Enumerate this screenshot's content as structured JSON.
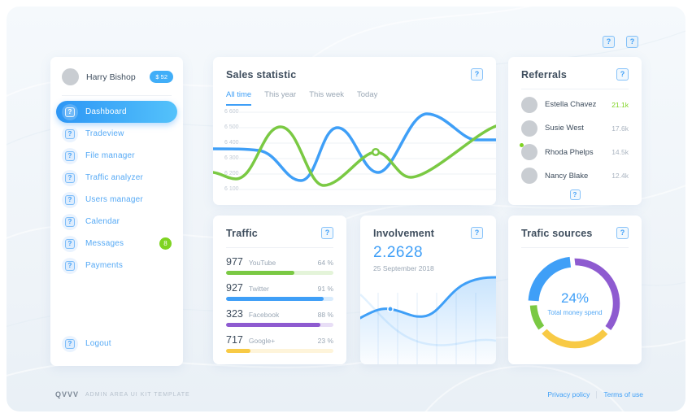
{
  "topbar": {
    "icon_glyph": "?"
  },
  "sidebar": {
    "user": {
      "name": "Harry Bishop",
      "badge": "$ 52"
    },
    "items": [
      {
        "label": "Dashboard",
        "active": true
      },
      {
        "label": "Tradeview"
      },
      {
        "label": "File manager"
      },
      {
        "label": "Traffic analyzer"
      },
      {
        "label": "Users manager"
      },
      {
        "label": "Calendar"
      },
      {
        "label": "Messages",
        "badge": "8"
      },
      {
        "label": "Payments"
      }
    ],
    "logout_label": "Logout"
  },
  "sales": {
    "title": "Sales statistic",
    "tabs": [
      {
        "label": "All time",
        "active": true
      },
      {
        "label": "This year"
      },
      {
        "label": "This week"
      },
      {
        "label": "Today"
      }
    ],
    "y_ticks": [
      "6 600",
      "6 500",
      "6 400",
      "6 300",
      "6 200",
      "6 100"
    ],
    "series": [
      {
        "name": "series-blue",
        "color": "#3f9ff7"
      },
      {
        "name": "series-green",
        "color": "#7ac943"
      }
    ]
  },
  "referrals": {
    "title": "Referrals",
    "items": [
      {
        "name": "Estella Chavez",
        "value": "21.1k",
        "highlight": true
      },
      {
        "name": "Susie West",
        "value": "17.6k"
      },
      {
        "name": "Rhoda Phelps",
        "value": "14.5k",
        "online": true
      },
      {
        "name": "Nancy Blake",
        "value": "12.4k"
      }
    ]
  },
  "traffic": {
    "title": "Traffic",
    "items": [
      {
        "count": "977",
        "label": "YouTube",
        "percent": 64,
        "percent_label": "64 %",
        "color": "#7ac943"
      },
      {
        "count": "927",
        "label": "Twitter",
        "percent": 91,
        "percent_label": "91 %",
        "color": "#3f9ff7"
      },
      {
        "count": "323",
        "label": "Facebook",
        "percent": 88,
        "percent_label": "88 %",
        "color": "#8e5bd0"
      },
      {
        "count": "717",
        "label": "Google+",
        "percent": 23,
        "percent_label": "23 %",
        "color": "#f8ca45"
      }
    ]
  },
  "involvement": {
    "title": "Involvement",
    "value": "2.2628",
    "date": "25 September 2018",
    "line_color": "#3f9ff7"
  },
  "sources": {
    "title": "Trafic sources",
    "center_value": "24%",
    "center_label": "Total money spend",
    "segments": [
      {
        "name": "purple",
        "percent": 37,
        "color": "#8e5bd0"
      },
      {
        "name": "yellow",
        "percent": 28,
        "color": "#f8ca45"
      },
      {
        "name": "green",
        "percent": 11,
        "color": "#7ac943"
      },
      {
        "name": "blue",
        "percent": 24,
        "color": "#3f9ff7",
        "highlight": true
      }
    ]
  },
  "footer": {
    "logo": "QVVV",
    "tagline": "ADMIN AREA UI KIT TEMPLATE",
    "links": [
      "Privacy policy",
      "Terms of use"
    ]
  }
}
